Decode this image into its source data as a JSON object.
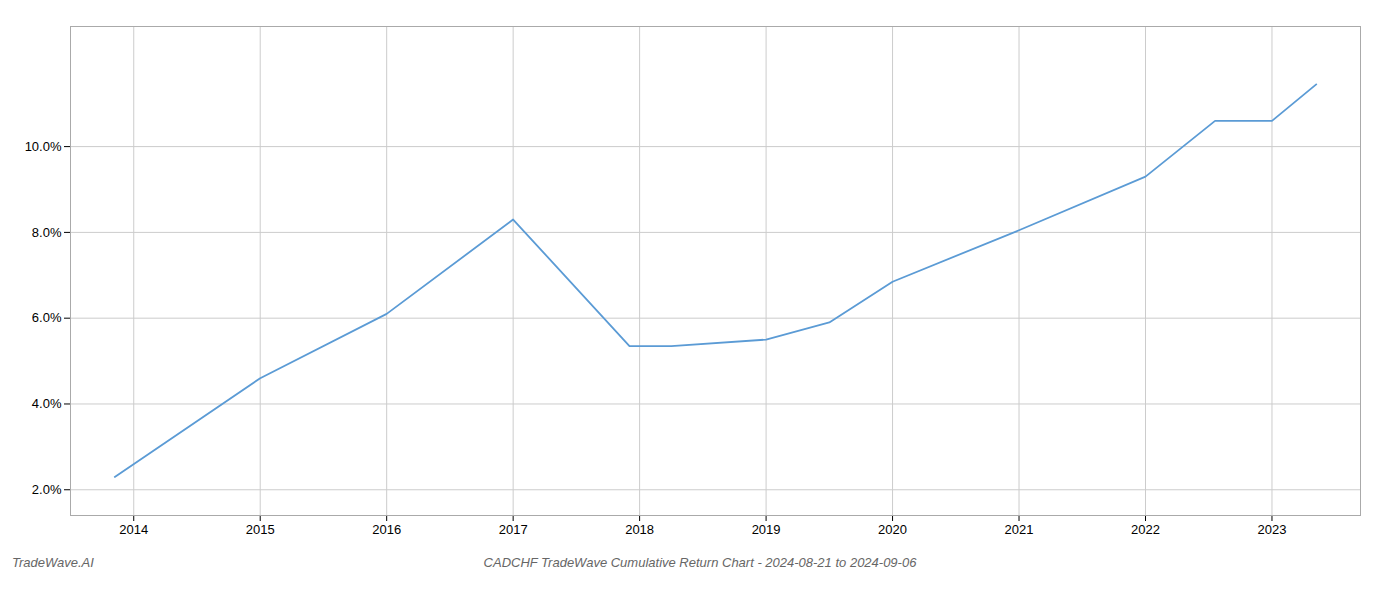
{
  "chart_data": {
    "type": "line",
    "title": "CADCHF TradeWave Cumulative Return Chart - 2024-08-21 to 2024-09-06",
    "annotations": [
      "TradeWave.AI"
    ],
    "x": [
      2013.85,
      2015.0,
      2016.0,
      2017.0,
      2017.92,
      2018.25,
      2019.0,
      2019.5,
      2020.0,
      2021.0,
      2022.0,
      2022.55,
      2023.0,
      2023.35
    ],
    "values": [
      2.3,
      4.6,
      6.1,
      8.3,
      5.35,
      5.35,
      5.5,
      5.9,
      6.85,
      8.05,
      9.3,
      10.6,
      10.6,
      11.45
    ],
    "color": "#5b9bd5",
    "xlim": [
      2013.5,
      2023.7
    ],
    "xticks": [
      2014,
      2015,
      2016,
      2017,
      2018,
      2019,
      2020,
      2021,
      2022,
      2023
    ],
    "ylim": [
      1.4,
      12.8
    ],
    "yticks": [
      {
        "value": 2.0,
        "label": "2.0%"
      },
      {
        "value": 4.0,
        "label": "4.0%"
      },
      {
        "value": 6.0,
        "label": "6.0%"
      },
      {
        "value": 8.0,
        "label": "8.0%"
      },
      {
        "value": 10.0,
        "label": "10.0%"
      }
    ],
    "grid": true
  }
}
